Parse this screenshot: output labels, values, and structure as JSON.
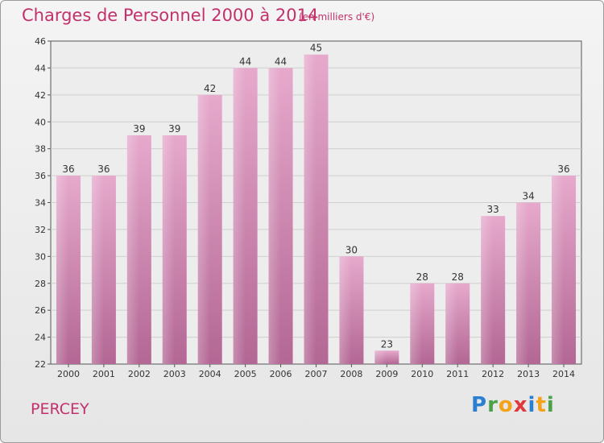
{
  "header": {
    "title": "Charges de Personnel 2000 à 2014",
    "subtitle": "(en milliers d'€)"
  },
  "footer": {
    "commune": "PERCEY",
    "logo": "Proxiti"
  },
  "colors": {
    "bar_light": "#e3a4c8",
    "bar_dark": "#b66a97",
    "title": "#c2316b"
  },
  "chart_data": {
    "type": "bar",
    "categories": [
      "2000",
      "2001",
      "2002",
      "2003",
      "2004",
      "2005",
      "2006",
      "2007",
      "2008",
      "2009",
      "2010",
      "2011",
      "2012",
      "2013",
      "2014"
    ],
    "values": [
      36,
      36,
      39,
      39,
      42,
      44,
      44,
      45,
      30,
      23,
      28,
      28,
      33,
      34,
      36
    ],
    "title": "Charges de Personnel 2000 à 2014",
    "subtitle": "(en milliers d'€)",
    "xlabel": "",
    "ylabel": "",
    "ylim": [
      22,
      46
    ],
    "yticks": [
      22,
      24,
      26,
      28,
      30,
      32,
      34,
      36,
      38,
      40,
      42,
      44,
      46
    ],
    "grid": true
  }
}
